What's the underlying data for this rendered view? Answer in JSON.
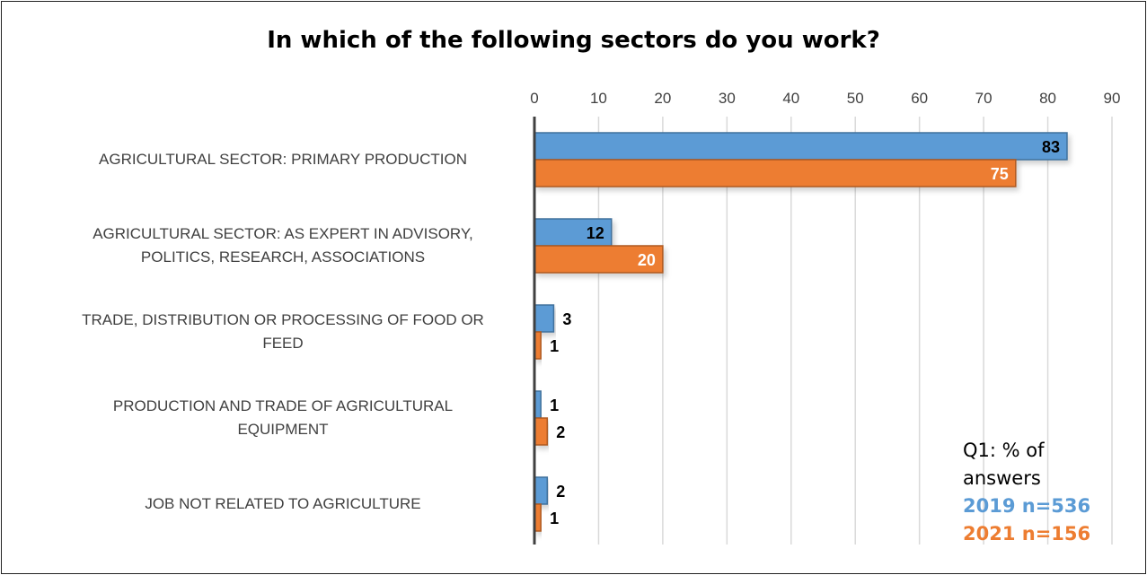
{
  "chart_data": {
    "type": "bar",
    "orientation": "horizontal",
    "title": "In which of the following sectors do you work?",
    "categories": [
      "AGRICULTURAL SECTOR: PRIMARY PRODUCTION",
      "AGRICULTURAL SECTOR: AS EXPERT IN ADVISORY, POLITICS, RESEARCH, ASSOCIATIONS",
      "TRADE, DISTRIBUTION OR PROCESSING OF FOOD OR FEED",
      "PRODUCTION AND TRADE OF AGRICULTURAL EQUIPMENT",
      "JOB NOT RELATED TO AGRICULTURE"
    ],
    "category_lines": [
      [
        "AGRICULTURAL SECTOR: PRIMARY PRODUCTION"
      ],
      [
        "AGRICULTURAL SECTOR: AS EXPERT IN ADVISORY,",
        "POLITICS, RESEARCH, ASSOCIATIONS"
      ],
      [
        "TRADE, DISTRIBUTION OR PROCESSING OF FOOD OR",
        "FEED"
      ],
      [
        "PRODUCTION AND TRADE OF AGRICULTURAL",
        "EQUIPMENT"
      ],
      [
        "JOB NOT RELATED TO AGRICULTURE"
      ]
    ],
    "series": [
      {
        "name": "2019 n=536",
        "color": "#5b9bd5",
        "values": [
          83,
          12,
          3,
          1,
          2
        ]
      },
      {
        "name": "2021 n=156",
        "color": "#ed7d31",
        "values": [
          75,
          20,
          1,
          2,
          1
        ]
      }
    ],
    "xlim": [
      0,
      90
    ],
    "xticks": [
      0,
      10,
      20,
      30,
      40,
      50,
      60,
      70,
      80,
      90
    ],
    "grid": true,
    "legend_caption": "Q1: % of answers",
    "legend_position": "bottom-right"
  }
}
